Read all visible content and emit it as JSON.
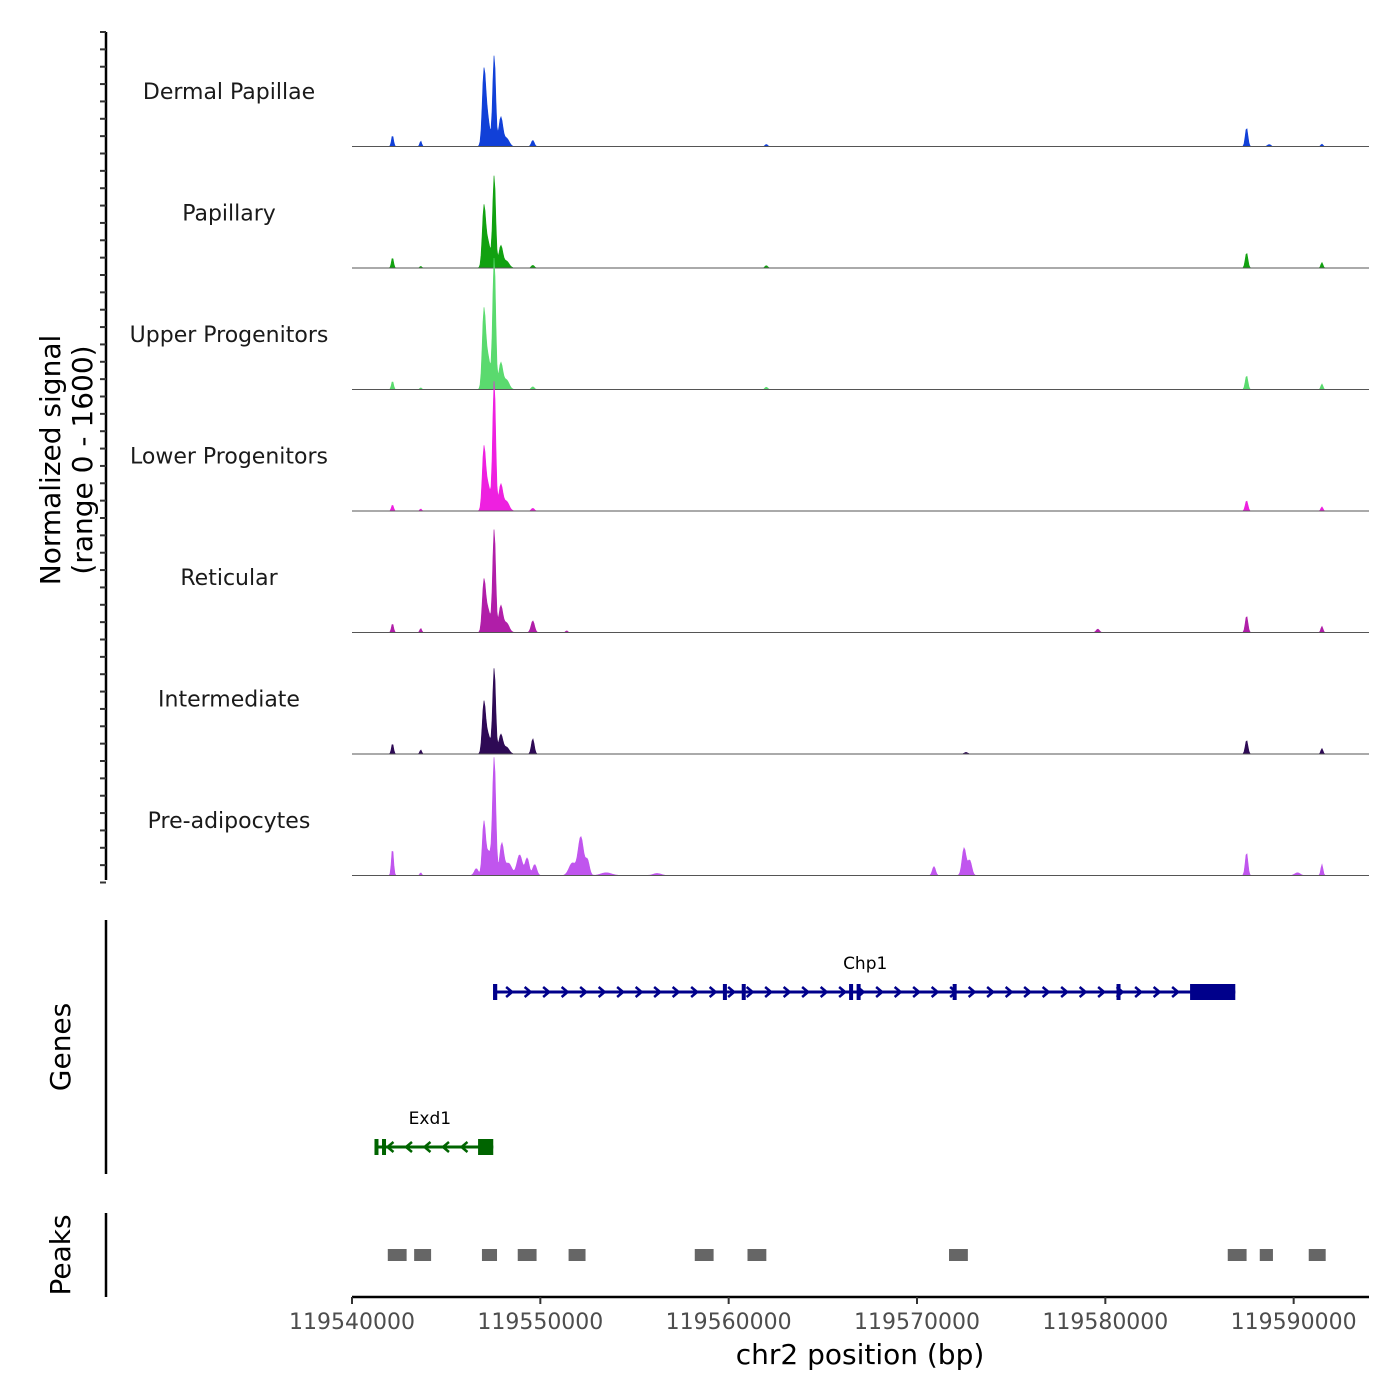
{
  "chart_data": {
    "type": "area",
    "y_axis_title": [
      "Normalized signal",
      "(range 0 - 1600)"
    ],
    "ylim": [
      0,
      1600
    ],
    "xlabel": "chr2 position (bp)",
    "xlim": [
      119540000,
      119594000
    ],
    "x_ticks": [
      119540000,
      119550000,
      119560000,
      119570000,
      119580000,
      119590000
    ],
    "x_tick_labels": [
      "119540000",
      "119550000",
      "119560000",
      "119570000",
      "119580000",
      "119590000"
    ],
    "tracks": [
      {
        "name": "Dermal Papillae",
        "color": "#1140d8",
        "peaks": [
          {
            "x": 119542150,
            "h": 160,
            "w": 80
          },
          {
            "x": 119543650,
            "h": 80,
            "w": 70
          },
          {
            "x": 119547000,
            "h": 850,
            "w": 120
          },
          {
            "x": 119547150,
            "h": 500,
            "w": 200
          },
          {
            "x": 119547550,
            "h": 1320,
            "w": 110
          },
          {
            "x": 119547900,
            "h": 420,
            "w": 150
          },
          {
            "x": 119548200,
            "h": 120,
            "w": 200
          },
          {
            "x": 119549600,
            "h": 90,
            "w": 110
          },
          {
            "x": 119562000,
            "h": 30,
            "w": 100
          },
          {
            "x": 119587500,
            "h": 270,
            "w": 100
          },
          {
            "x": 119588700,
            "h": 30,
            "w": 120
          },
          {
            "x": 119591500,
            "h": 35,
            "w": 80
          }
        ]
      },
      {
        "name": "Papillary",
        "color": "#11a110",
        "peaks": [
          {
            "x": 119542150,
            "h": 150,
            "w": 80
          },
          {
            "x": 119543650,
            "h": 25,
            "w": 70
          },
          {
            "x": 119547000,
            "h": 770,
            "w": 120
          },
          {
            "x": 119547200,
            "h": 400,
            "w": 200
          },
          {
            "x": 119547550,
            "h": 1330,
            "w": 110
          },
          {
            "x": 119547900,
            "h": 320,
            "w": 150
          },
          {
            "x": 119548200,
            "h": 100,
            "w": 200
          },
          {
            "x": 119549600,
            "h": 40,
            "w": 110
          },
          {
            "x": 119562000,
            "h": 35,
            "w": 100
          },
          {
            "x": 119587500,
            "h": 220,
            "w": 100
          },
          {
            "x": 119591500,
            "h": 80,
            "w": 80
          }
        ]
      },
      {
        "name": "Upper Progenitors",
        "color": "#5ada6e",
        "peaks": [
          {
            "x": 119542150,
            "h": 120,
            "w": 80
          },
          {
            "x": 119543650,
            "h": 25,
            "w": 70
          },
          {
            "x": 119547000,
            "h": 1000,
            "w": 120
          },
          {
            "x": 119547200,
            "h": 500,
            "w": 200
          },
          {
            "x": 119547550,
            "h": 1900,
            "w": 110
          },
          {
            "x": 119547900,
            "h": 380,
            "w": 150
          },
          {
            "x": 119548200,
            "h": 140,
            "w": 200
          },
          {
            "x": 119549600,
            "h": 40,
            "w": 110
          },
          {
            "x": 119562000,
            "h": 35,
            "w": 100
          },
          {
            "x": 119587500,
            "h": 200,
            "w": 100
          },
          {
            "x": 119591500,
            "h": 80,
            "w": 80
          }
        ]
      },
      {
        "name": "Lower Progenitors",
        "color": "#ee20e0",
        "peaks": [
          {
            "x": 119542150,
            "h": 90,
            "w": 80
          },
          {
            "x": 119543650,
            "h": 30,
            "w": 70
          },
          {
            "x": 119547000,
            "h": 800,
            "w": 120
          },
          {
            "x": 119547200,
            "h": 400,
            "w": 200
          },
          {
            "x": 119547550,
            "h": 1880,
            "w": 110
          },
          {
            "x": 119547900,
            "h": 380,
            "w": 150
          },
          {
            "x": 119548200,
            "h": 140,
            "w": 200
          },
          {
            "x": 119549600,
            "h": 40,
            "w": 110
          },
          {
            "x": 119587500,
            "h": 150,
            "w": 100
          },
          {
            "x": 119591500,
            "h": 60,
            "w": 80
          }
        ]
      },
      {
        "name": "Reticular",
        "color": "#b01ea8",
        "peaks": [
          {
            "x": 119542150,
            "h": 130,
            "w": 80
          },
          {
            "x": 119543650,
            "h": 60,
            "w": 70
          },
          {
            "x": 119547000,
            "h": 650,
            "w": 120
          },
          {
            "x": 119547200,
            "h": 350,
            "w": 200
          },
          {
            "x": 119547550,
            "h": 1490,
            "w": 110
          },
          {
            "x": 119547900,
            "h": 380,
            "w": 150
          },
          {
            "x": 119548200,
            "h": 140,
            "w": 200
          },
          {
            "x": 119549600,
            "h": 170,
            "w": 130
          },
          {
            "x": 119551400,
            "h": 25,
            "w": 80
          },
          {
            "x": 119579600,
            "h": 50,
            "w": 120
          },
          {
            "x": 119587500,
            "h": 240,
            "w": 100
          },
          {
            "x": 119591500,
            "h": 90,
            "w": 80
          }
        ]
      },
      {
        "name": "Intermediate",
        "color": "#2e0a55",
        "peaks": [
          {
            "x": 119542150,
            "h": 150,
            "w": 80
          },
          {
            "x": 119543650,
            "h": 60,
            "w": 70
          },
          {
            "x": 119547000,
            "h": 660,
            "w": 120
          },
          {
            "x": 119547200,
            "h": 300,
            "w": 200
          },
          {
            "x": 119547550,
            "h": 1240,
            "w": 110
          },
          {
            "x": 119547900,
            "h": 280,
            "w": 150
          },
          {
            "x": 119548200,
            "h": 100,
            "w": 200
          },
          {
            "x": 119549600,
            "h": 220,
            "w": 110
          },
          {
            "x": 119572600,
            "h": 25,
            "w": 120
          },
          {
            "x": 119587500,
            "h": 200,
            "w": 100
          },
          {
            "x": 119591500,
            "h": 80,
            "w": 80
          }
        ]
      },
      {
        "name": "Pre-adipocytes",
        "color": "#c055ee",
        "peaks": [
          {
            "x": 119542150,
            "h": 390,
            "w": 80
          },
          {
            "x": 119543650,
            "h": 40,
            "w": 70
          },
          {
            "x": 119546600,
            "h": 100,
            "w": 150
          },
          {
            "x": 119547000,
            "h": 720,
            "w": 120
          },
          {
            "x": 119547250,
            "h": 350,
            "w": 200
          },
          {
            "x": 119547550,
            "h": 1690,
            "w": 120
          },
          {
            "x": 119547950,
            "h": 450,
            "w": 150
          },
          {
            "x": 119548300,
            "h": 180,
            "w": 250
          },
          {
            "x": 119548900,
            "h": 300,
            "w": 200
          },
          {
            "x": 119549300,
            "h": 250,
            "w": 150
          },
          {
            "x": 119549700,
            "h": 160,
            "w": 150
          },
          {
            "x": 119551700,
            "h": 180,
            "w": 250
          },
          {
            "x": 119552150,
            "h": 560,
            "w": 200
          },
          {
            "x": 119552500,
            "h": 220,
            "w": 150
          },
          {
            "x": 119553500,
            "h": 40,
            "w": 400
          },
          {
            "x": 119556200,
            "h": 30,
            "w": 300
          },
          {
            "x": 119570900,
            "h": 130,
            "w": 120
          },
          {
            "x": 119572500,
            "h": 400,
            "w": 150
          },
          {
            "x": 119572800,
            "h": 220,
            "w": 150
          },
          {
            "x": 119587500,
            "h": 330,
            "w": 100
          },
          {
            "x": 119590200,
            "h": 40,
            "w": 200
          },
          {
            "x": 119591500,
            "h": 160,
            "w": 80
          }
        ]
      }
    ],
    "genes_track_title": "Genes",
    "genes": [
      {
        "name": "Chp1",
        "strand": "+",
        "color": "#00008b",
        "start": 119547600,
        "end": 119586900,
        "thick_start": 119584500,
        "exons": [
          119547600,
          119559800,
          119560800,
          119566500,
          119566900,
          119572000,
          119580700
        ]
      },
      {
        "name": "Exd1",
        "strand": "-",
        "color": "#006400",
        "start": 119541300,
        "end": 119547500,
        "thick_start": 119546800,
        "exons": [
          119541700,
          119546800
        ]
      }
    ],
    "peaks_track_title": "Peaks",
    "peaks_color": "#666666",
    "peak_regions": [
      [
        119541900,
        119542900
      ],
      [
        119543300,
        119544200
      ],
      [
        119546900,
        119547700
      ],
      [
        119548800,
        119549800
      ],
      [
        119551500,
        119552400
      ],
      [
        119558200,
        119559200
      ],
      [
        119561000,
        119562000
      ],
      [
        119571700,
        119572700
      ],
      [
        119586500,
        119587500
      ],
      [
        119588200,
        119588900
      ],
      [
        119590800,
        119591700
      ]
    ]
  }
}
